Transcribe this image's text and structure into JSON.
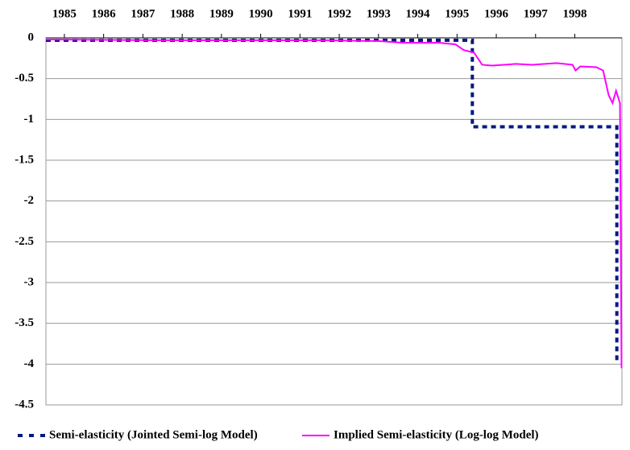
{
  "chart_data": {
    "type": "line",
    "xlim": [
      1984.53,
      1999.2
    ],
    "xticks": [
      1985,
      1986,
      1987,
      1988,
      1989,
      1990,
      1991,
      1992,
      1993,
      1994,
      1995,
      1996,
      1997,
      1998
    ],
    "ylim": [
      -4.5,
      0
    ],
    "yticks": [
      0,
      -0.5,
      -1,
      -1.5,
      -2,
      -2.5,
      -3,
      -3.5,
      -4,
      -4.5
    ],
    "grid": true,
    "legend": "bottom",
    "series": [
      {
        "name": "Semi-elasticity (Jointed Semi-log Model)",
        "color": "#001a80",
        "dash": true,
        "x": [
          1984.53,
          1995.39,
          1995.39,
          1999.07,
          1999.07
        ],
        "values": [
          -0.03,
          -0.03,
          -1.09,
          -1.09,
          -4.0
        ]
      },
      {
        "name": "Implied Semi-elasticity (Log-log Model)",
        "color": "#ff00ff",
        "dash": false,
        "x": [
          1984.53,
          1987.47,
          1991.57,
          1993.01,
          1993.63,
          1994.55,
          1994.96,
          1995.17,
          1995.43,
          1995.64,
          1995.89,
          1996.19,
          1996.5,
          1996.91,
          1997.53,
          1997.94,
          1998.02,
          1998.14,
          1998.55,
          1998.72,
          1998.86,
          1998.96,
          1999.05,
          1999.15,
          1999.19
        ],
        "values": [
          -0.02,
          -0.03,
          -0.03,
          -0.04,
          -0.06,
          -0.06,
          -0.08,
          -0.15,
          -0.18,
          -0.33,
          -0.34,
          -0.33,
          -0.32,
          -0.33,
          -0.31,
          -0.33,
          -0.4,
          -0.35,
          -0.36,
          -0.4,
          -0.7,
          -0.8,
          -0.65,
          -0.8,
          -4.05
        ]
      }
    ]
  }
}
